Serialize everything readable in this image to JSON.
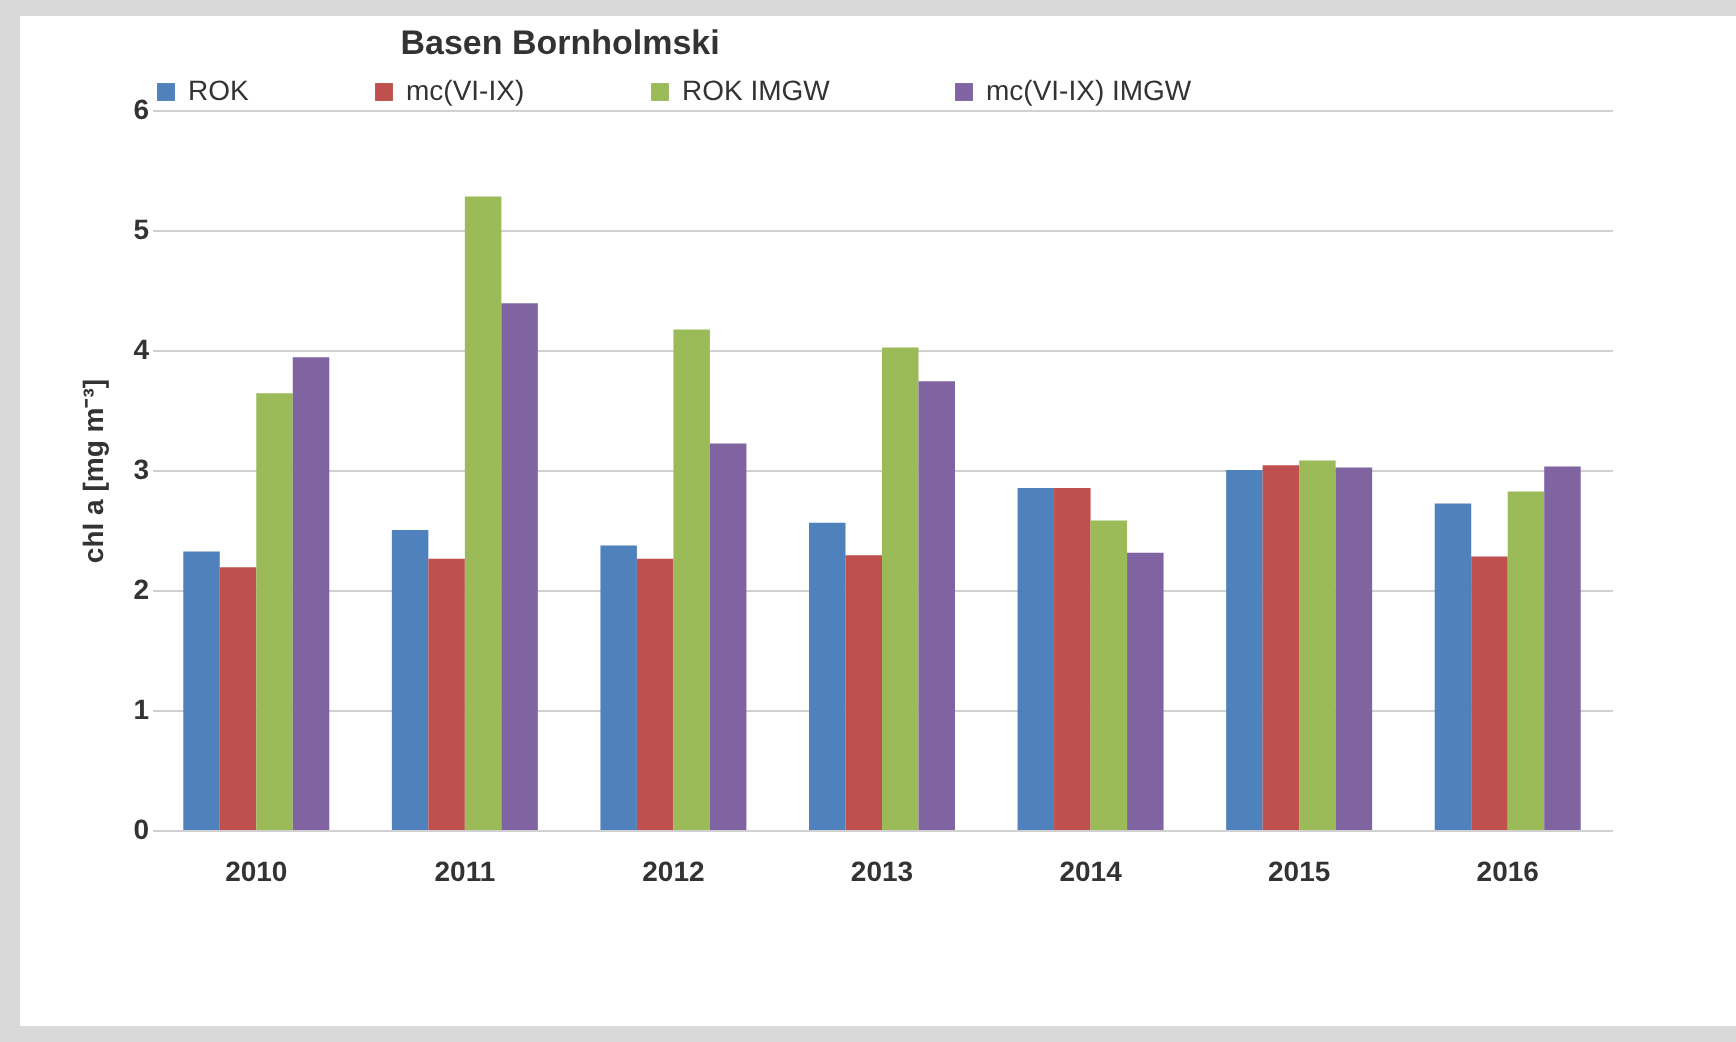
{
  "chart_data": {
    "type": "bar",
    "title": "Basen Bornholmski",
    "ylabel": "chl a [mg m⁻³]",
    "categories": [
      "2010",
      "2011",
      "2012",
      "2013",
      "2014",
      "2015",
      "2016"
    ],
    "series": [
      {
        "name": "ROK",
        "color": "#4f81bd",
        "values": [
          2.32,
          2.5,
          2.37,
          2.56,
          2.85,
          3.0,
          2.72
        ]
      },
      {
        "name": "mc(VI-IX)",
        "color": "#c0504d",
        "values": [
          2.19,
          2.26,
          2.26,
          2.29,
          2.85,
          3.04,
          2.28
        ]
      },
      {
        "name": "ROK IMGW",
        "color": "#9bbb59",
        "values": [
          3.64,
          5.28,
          4.17,
          4.02,
          2.58,
          3.08,
          2.82
        ]
      },
      {
        "name": "mc(VI-IX) IMGW",
        "color": "#8064a2",
        "values": [
          3.94,
          4.39,
          3.22,
          3.74,
          2.31,
          3.02,
          3.03
        ]
      }
    ],
    "ylim": [
      0,
      6
    ],
    "yticks": [
      0,
      1,
      2,
      3,
      4,
      5,
      6
    ],
    "grid": "y",
    "legend": "top"
  }
}
